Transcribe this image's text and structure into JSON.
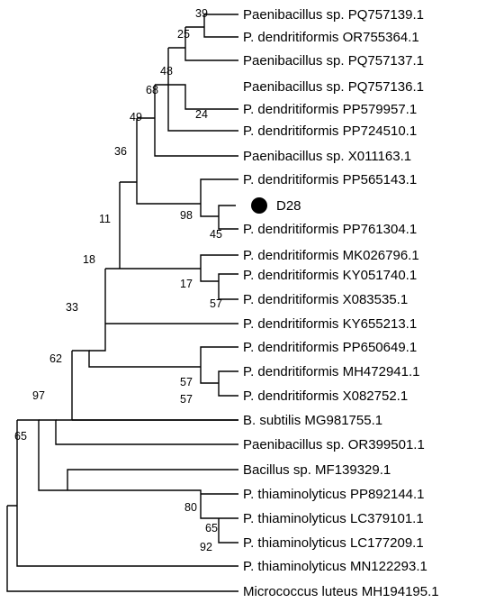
{
  "taxa": [
    "Paenibacillus sp. PQ757139.1",
    "P. dendritiformis OR755364.1",
    "Paenibacillus sp. PQ757137.1",
    "Paenibacillus sp. PQ757136.1",
    "P. dendritiformis PP579957.1",
    "P. dendritiformis PP724510.1",
    "Paenibacillus sp. X011163.1",
    "P. dendritiformis PP565143.1",
    "D28",
    "P. dendritiformis PP761304.1",
    "P. dendritiformis MK026796.1",
    "P. dendritiformis KY051740.1",
    "P. dendritiformis X083535.1",
    "P. dendritiformis KY655213.1",
    "P. dendritiformis PP650649.1",
    "P. dendritiformis MH472941.1",
    "P. dendritiformis X082752.1",
    "B. subtilis MG981755.1",
    "Paenibacillus sp. OR399501.1",
    "Bacillus sp. MF139329.1",
    "P. thiaminolyticus PP892144.1",
    "P. thiaminolyticus LC379101.1",
    "P. thiaminolyticus LC177209.1",
    "P. thiaminolyticus MN122293.1",
    "Micrococcus luteus MH194195.1"
  ],
  "bootstrap": {
    "n39": "39",
    "n25": "25",
    "n48": "48",
    "n24": "24",
    "n68": "68",
    "n49": "49",
    "n36": "36",
    "n45": "45",
    "n98": "98",
    "n11": "11",
    "n57a": "57",
    "n17": "17",
    "n18": "18",
    "n57b": "57",
    "n57c": "57",
    "n33": "33",
    "n62": "62",
    "n97": "97",
    "n65a": "65",
    "n92": "92",
    "n80": "80",
    "n65b": "65"
  },
  "highlight": {
    "taxon": "D28",
    "marker": "filled-circle",
    "color": "#000000"
  }
}
